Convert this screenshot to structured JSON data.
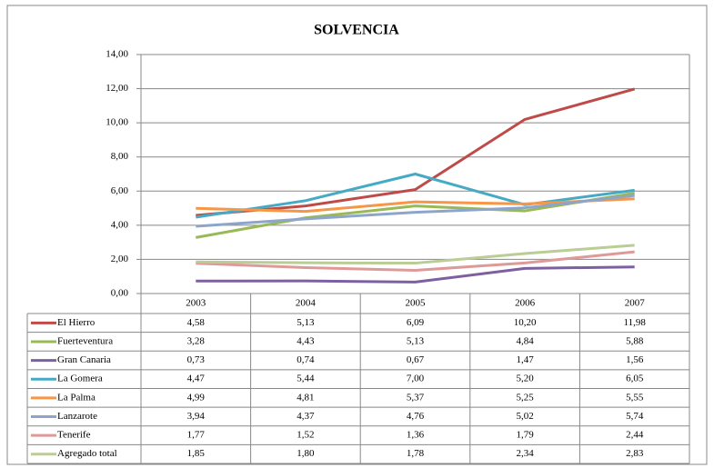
{
  "chart_data": {
    "type": "line",
    "title": "SOLVENCIA",
    "categories": [
      "2003",
      "2004",
      "2005",
      "2006",
      "2007"
    ],
    "ylim": [
      0,
      14
    ],
    "yticks": [
      {
        "value": 0,
        "label": "0,00"
      },
      {
        "value": 2,
        "label": "2,00"
      },
      {
        "value": 4,
        "label": "4,00"
      },
      {
        "value": 6,
        "label": "6,00"
      },
      {
        "value": 8,
        "label": "8,00"
      },
      {
        "value": 10,
        "label": "10,00"
      },
      {
        "value": 12,
        "label": "12,00"
      },
      {
        "value": 14,
        "label": "14,00"
      }
    ],
    "grid": true,
    "series": [
      {
        "name": "El Hierro",
        "color": "#be4b48",
        "values": [
          4.58,
          5.13,
          6.09,
          10.2,
          11.98
        ],
        "value_labels": [
          "4,58",
          "5,13",
          "6,09",
          "10,20",
          "11,98"
        ]
      },
      {
        "name": "Fuerteventura",
        "color": "#98b954",
        "values": [
          3.28,
          4.43,
          5.13,
          4.84,
          5.88
        ],
        "value_labels": [
          "3,28",
          "4,43",
          "5,13",
          "4,84",
          "5,88"
        ]
      },
      {
        "name": "Gran Canaria",
        "color": "#7d60a0",
        "values": [
          0.73,
          0.74,
          0.67,
          1.47,
          1.56
        ],
        "value_labels": [
          "0,73",
          "0,74",
          "0,67",
          "1,47",
          "1,56"
        ]
      },
      {
        "name": "La Gomera",
        "color": "#46aac5",
        "values": [
          4.47,
          5.44,
          7.0,
          5.2,
          6.05
        ],
        "value_labels": [
          "4,47",
          "5,44",
          "7,00",
          "5,20",
          "6,05"
        ]
      },
      {
        "name": "La Palma",
        "color": "#f79646",
        "values": [
          4.99,
          4.81,
          5.37,
          5.25,
          5.55
        ],
        "value_labels": [
          "4,99",
          "4,81",
          "5,37",
          "5,25",
          "5,55"
        ]
      },
      {
        "name": "Lanzarote",
        "color": "#8ea5cb",
        "values": [
          3.94,
          4.37,
          4.76,
          5.02,
          5.74
        ],
        "value_labels": [
          "3,94",
          "4,37",
          "4,76",
          "5,02",
          "5,74"
        ]
      },
      {
        "name": "Tenerife",
        "color": "#dd9a99",
        "values": [
          1.77,
          1.52,
          1.36,
          1.79,
          2.44
        ],
        "value_labels": [
          "1,77",
          "1,52",
          "1,36",
          "1,79",
          "2,44"
        ]
      },
      {
        "name": "Agregado total",
        "color": "#b9cd95",
        "values": [
          1.85,
          1.8,
          1.78,
          2.34,
          2.83
        ],
        "value_labels": [
          "1,85",
          "1,80",
          "1,78",
          "2,34",
          "2,83"
        ]
      }
    ]
  }
}
